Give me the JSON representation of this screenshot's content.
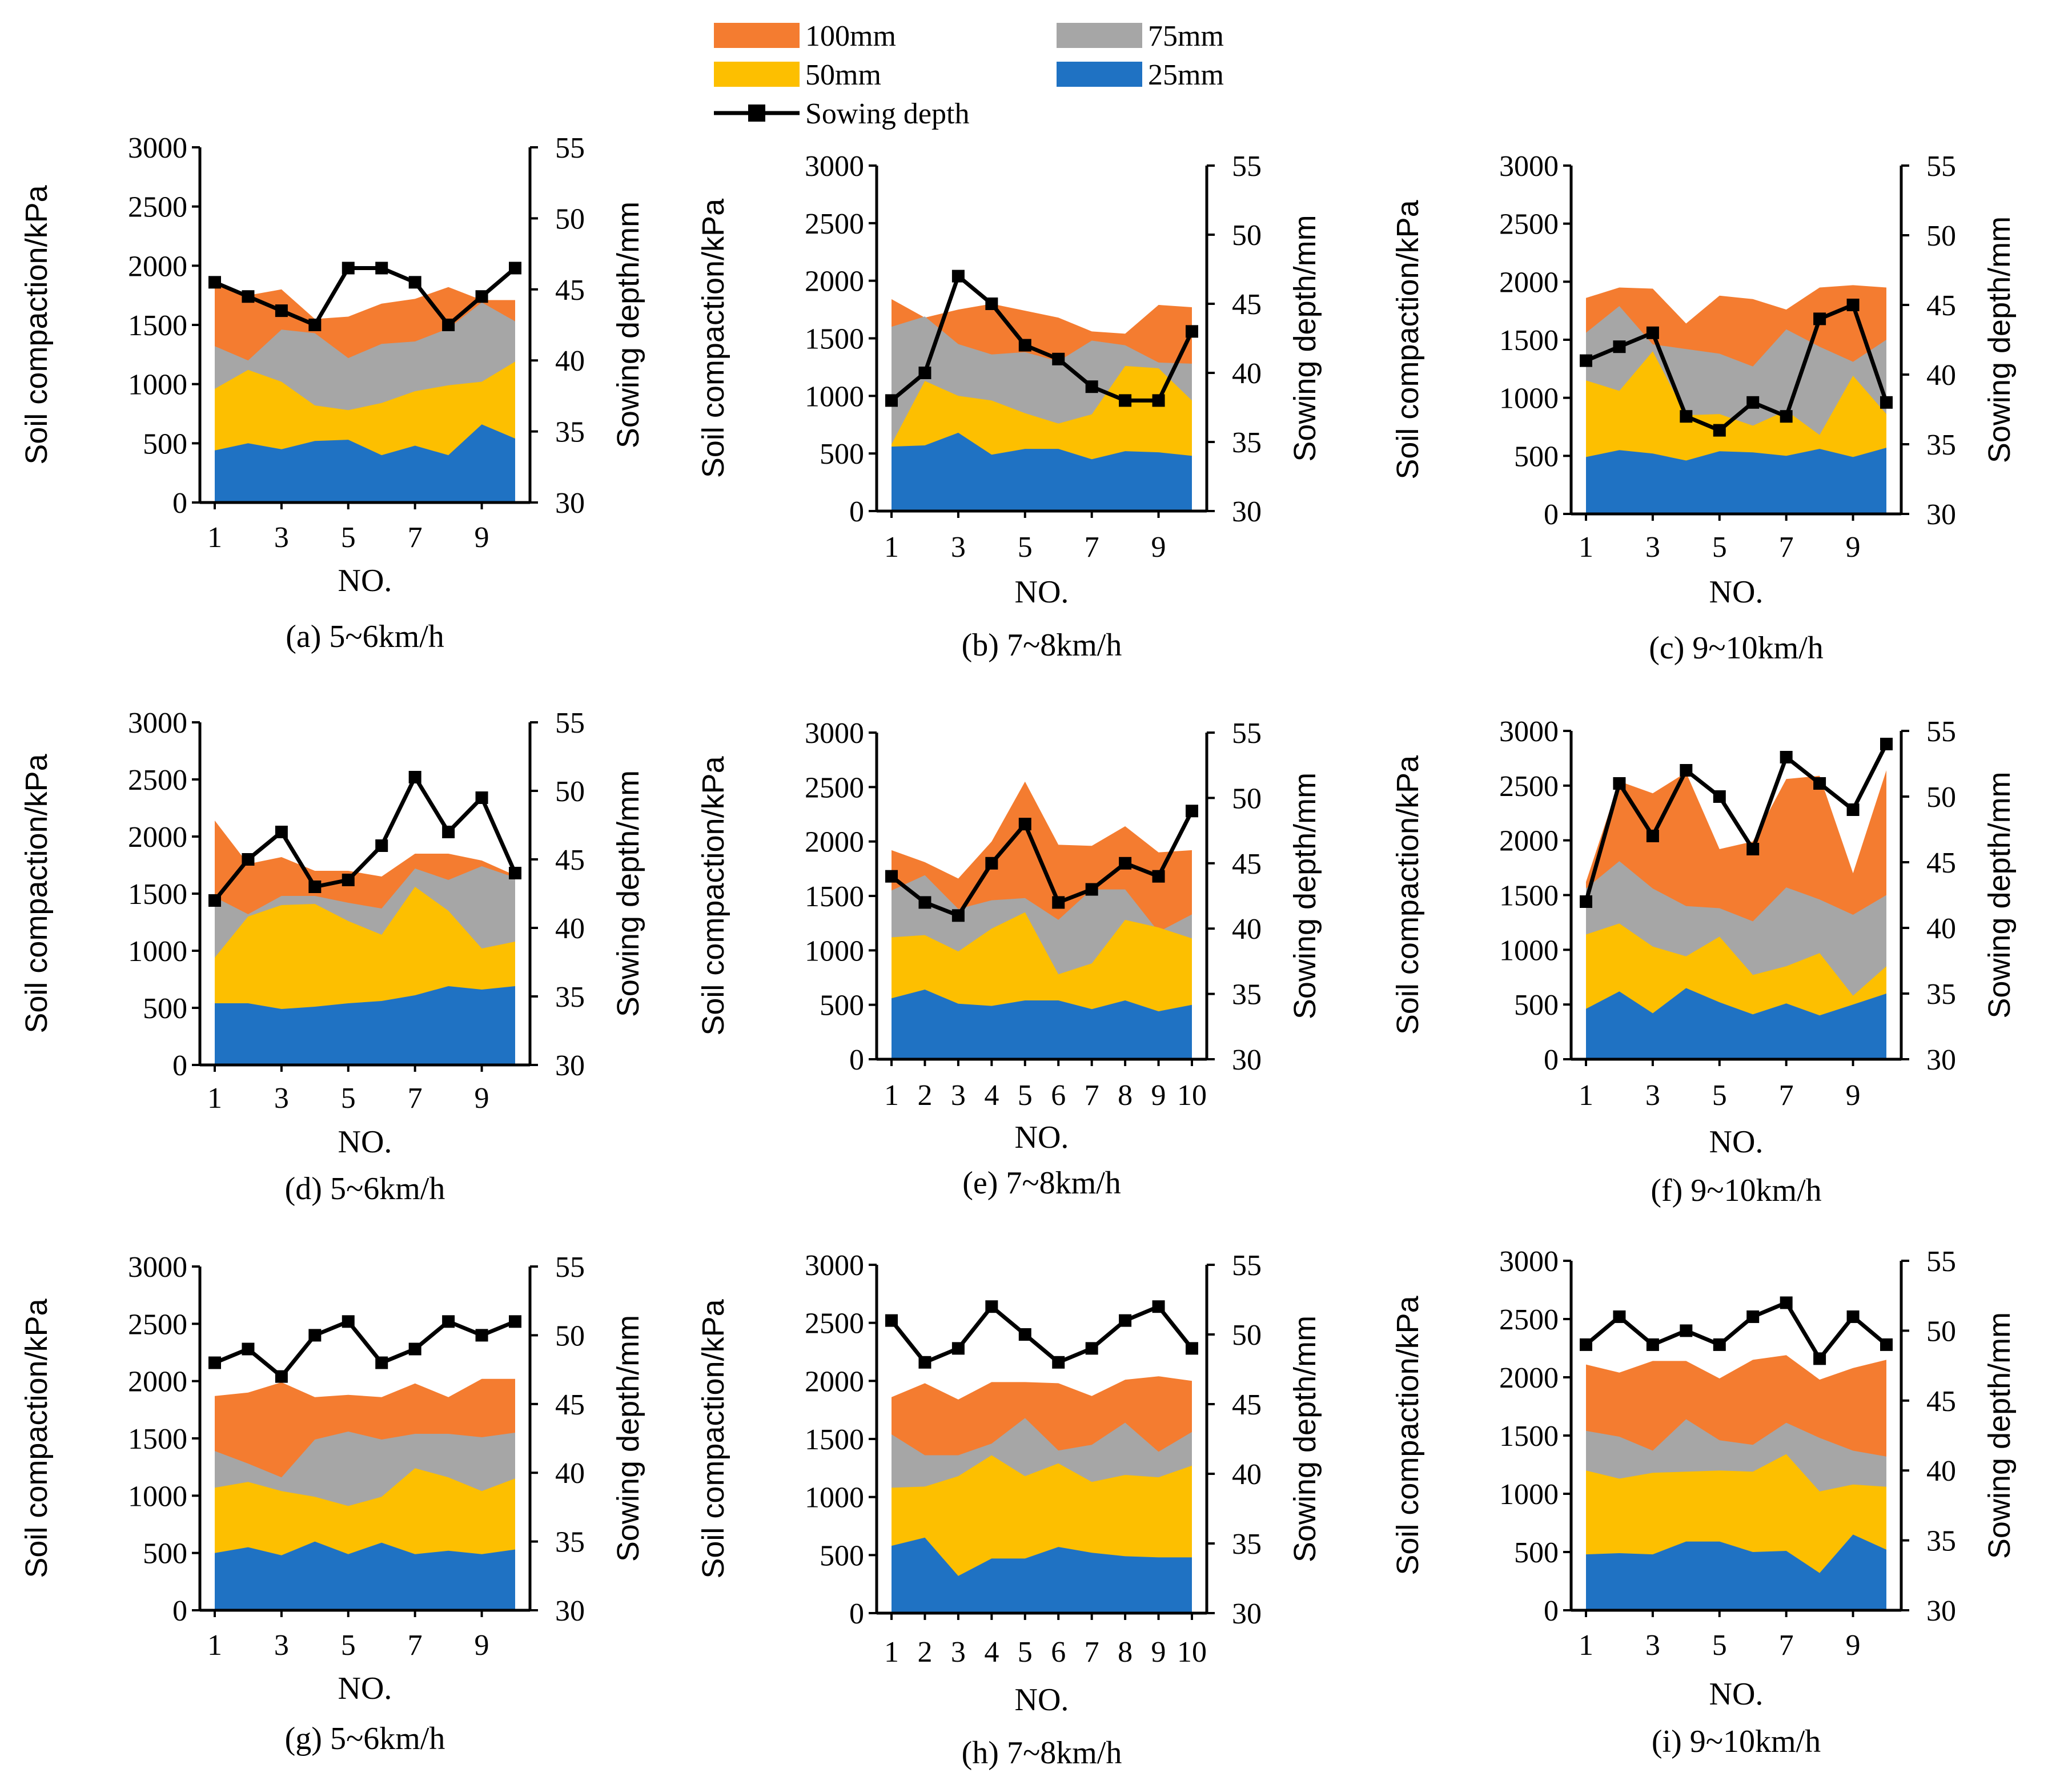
{
  "legend": {
    "items": [
      {
        "key": "s100",
        "label": "100mm",
        "color": "#F47C30",
        "kind": "area"
      },
      {
        "key": "s75",
        "label": "75mm",
        "color": "#A6A6A6",
        "kind": "area"
      },
      {
        "key": "s50",
        "label": "50mm",
        "color": "#FDBF00",
        "kind": "area"
      },
      {
        "key": "s25",
        "label": "25mm",
        "color": "#1F72C3",
        "kind": "area"
      },
      {
        "key": "depth",
        "label": "Sowing depth",
        "color": "#000000",
        "kind": "line"
      }
    ]
  },
  "chart_data": [
    {
      "id": "a",
      "type": "area",
      "title": "(a) 5~6km/h",
      "xlabel": "NO.",
      "ylabel": "Soil compaction/kPa",
      "y2label": "Sowing depth/mm",
      "x": [
        1,
        2,
        3,
        4,
        5,
        6,
        7,
        8,
        9,
        10
      ],
      "xticks": [
        "1",
        "3",
        "5",
        "7",
        "9"
      ],
      "ylim": [
        0,
        3000
      ],
      "yticks": [
        "0",
        "500",
        "1000",
        "1500",
        "2000",
        "2500",
        "3000"
      ],
      "y2lim": [
        30,
        55
      ],
      "y2ticks": [
        "30",
        "35",
        "40",
        "45",
        "50",
        "55"
      ],
      "series": [
        {
          "name": "25mm",
          "values": [
            440,
            500,
            450,
            520,
            530,
            400,
            480,
            400,
            660,
            540
          ]
        },
        {
          "name": "50mm",
          "values": [
            960,
            1120,
            1020,
            820,
            780,
            840,
            940,
            990,
            1020,
            1190
          ]
        },
        {
          "name": "75mm",
          "values": [
            1320,
            1200,
            1460,
            1430,
            1220,
            1340,
            1360,
            1470,
            1690,
            1530
          ]
        },
        {
          "name": "100mm",
          "values": [
            1840,
            1750,
            1800,
            1550,
            1570,
            1680,
            1720,
            1820,
            1710,
            1710
          ]
        }
      ],
      "sowing_depth": [
        45.5,
        44.5,
        43.5,
        42.5,
        46.5,
        46.5,
        45.5,
        42.5,
        44.5,
        46.5
      ]
    },
    {
      "id": "b",
      "type": "area",
      "title": "(b) 7~8km/h",
      "xlabel": "NO.",
      "ylabel": "Soil compaction/kPa",
      "y2label": "Sowing depth/mm",
      "x": [
        1,
        2,
        3,
        4,
        5,
        6,
        7,
        8,
        9,
        10
      ],
      "xticks": [
        "1",
        "3",
        "5",
        "7",
        "9"
      ],
      "ylim": [
        0,
        3000
      ],
      "yticks": [
        "0",
        "500",
        "1000",
        "1500",
        "2000",
        "2500",
        "3000"
      ],
      "y2lim": [
        30,
        55
      ],
      "y2ticks": [
        "30",
        "35",
        "40",
        "45",
        "50",
        "55"
      ],
      "series": [
        {
          "name": "25mm",
          "values": [
            560,
            570,
            680,
            490,
            540,
            540,
            450,
            520,
            510,
            480
          ]
        },
        {
          "name": "50mm",
          "values": [
            580,
            1130,
            1000,
            960,
            850,
            760,
            840,
            1260,
            1240,
            960
          ]
        },
        {
          "name": "75mm",
          "values": [
            1600,
            1690,
            1450,
            1360,
            1380,
            1300,
            1480,
            1440,
            1290,
            1280
          ]
        },
        {
          "name": "100mm",
          "values": [
            1840,
            1680,
            1750,
            1800,
            1740,
            1680,
            1560,
            1540,
            1790,
            1770
          ]
        }
      ],
      "sowing_depth": [
        38,
        40,
        47,
        45,
        42,
        41,
        39,
        38,
        38,
        43
      ]
    },
    {
      "id": "c",
      "type": "area",
      "title": "(c) 9~10km/h",
      "xlabel": "NO.",
      "ylabel": "Soil compaction/kPa",
      "y2label": "Sowing depth/mm",
      "x": [
        1,
        2,
        3,
        4,
        5,
        6,
        7,
        8,
        9,
        10
      ],
      "xticks": [
        "1",
        "3",
        "5",
        "7",
        "9"
      ],
      "ylim": [
        0,
        3000
      ],
      "yticks": [
        "0",
        "500",
        "1000",
        "1500",
        "2000",
        "2500",
        "3000"
      ],
      "y2lim": [
        30,
        55
      ],
      "y2ticks": [
        "30",
        "35",
        "40",
        "45",
        "50",
        "55"
      ],
      "series": [
        {
          "name": "25mm",
          "values": [
            490,
            550,
            520,
            460,
            540,
            530,
            500,
            560,
            490,
            570
          ]
        },
        {
          "name": "50mm",
          "values": [
            1150,
            1060,
            1400,
            850,
            860,
            760,
            890,
            680,
            1190,
            860
          ]
        },
        {
          "name": "75mm",
          "values": [
            1560,
            1790,
            1460,
            1420,
            1380,
            1270,
            1590,
            1440,
            1310,
            1500
          ]
        },
        {
          "name": "100mm",
          "values": [
            1860,
            1950,
            1940,
            1640,
            1880,
            1850,
            1760,
            1950,
            1970,
            1950
          ]
        }
      ],
      "sowing_depth": [
        41,
        42,
        43,
        37,
        36,
        38,
        37,
        44,
        45,
        38
      ]
    },
    {
      "id": "d",
      "type": "area",
      "title": "(d) 5~6km/h",
      "xlabel": "NO.",
      "ylabel": "Soil compaction/kPa",
      "y2label": "Sowing depth/mm",
      "x": [
        1,
        2,
        3,
        4,
        5,
        6,
        7,
        8,
        9,
        10
      ],
      "xticks": [
        "1",
        "3",
        "5",
        "7",
        "9"
      ],
      "ylim": [
        0,
        3000
      ],
      "yticks": [
        "0",
        "500",
        "1000",
        "1500",
        "2000",
        "2500",
        "3000"
      ],
      "y2lim": [
        30,
        55
      ],
      "y2ticks": [
        "30",
        "35",
        "40",
        "45",
        "50",
        "55"
      ],
      "series": [
        {
          "name": "25mm",
          "values": [
            540,
            540,
            490,
            510,
            540,
            560,
            610,
            690,
            660,
            690
          ]
        },
        {
          "name": "50mm",
          "values": [
            940,
            1300,
            1400,
            1410,
            1260,
            1140,
            1560,
            1350,
            1020,
            1080
          ]
        },
        {
          "name": "75mm",
          "values": [
            1470,
            1320,
            1480,
            1480,
            1420,
            1370,
            1720,
            1620,
            1740,
            1640
          ]
        },
        {
          "name": "100mm",
          "values": [
            2140,
            1760,
            1820,
            1700,
            1700,
            1650,
            1850,
            1850,
            1790,
            1660
          ]
        }
      ],
      "sowing_depth": [
        42,
        45,
        47,
        43,
        43.5,
        46,
        51,
        47,
        49.5,
        44
      ]
    },
    {
      "id": "e",
      "type": "area",
      "title": "(e) 7~8km/h",
      "xlabel": "NO.",
      "ylabel": "Soil compaction/kPa",
      "y2label": "Sowing depth/mm",
      "x": [
        1,
        2,
        3,
        4,
        5,
        6,
        7,
        8,
        9,
        10
      ],
      "xticks": [
        "1",
        "2",
        "3",
        "4",
        "5",
        "6",
        "7",
        "8",
        "9",
        "10"
      ],
      "ylim": [
        0,
        3000
      ],
      "yticks": [
        "0",
        "500",
        "1000",
        "1500",
        "2000",
        "2500",
        "3000"
      ],
      "y2lim": [
        30,
        55
      ],
      "y2ticks": [
        "30",
        "35",
        "40",
        "45",
        "50",
        "55"
      ],
      "series": [
        {
          "name": "25mm",
          "values": [
            560,
            640,
            510,
            490,
            540,
            540,
            460,
            540,
            440,
            500
          ]
        },
        {
          "name": "50mm",
          "values": [
            1120,
            1140,
            990,
            1200,
            1350,
            780,
            880,
            1280,
            1210,
            1110
          ]
        },
        {
          "name": "75mm",
          "values": [
            1550,
            1690,
            1380,
            1460,
            1480,
            1280,
            1560,
            1560,
            1170,
            1330
          ]
        },
        {
          "name": "100mm",
          "values": [
            1920,
            1810,
            1660,
            2000,
            2550,
            1970,
            1960,
            2140,
            1900,
            1920
          ]
        }
      ],
      "sowing_depth": [
        44,
        42,
        41,
        45,
        48,
        42,
        43,
        45,
        44,
        49
      ]
    },
    {
      "id": "f",
      "type": "area",
      "title": "(f) 9~10km/h",
      "xlabel": "NO.",
      "ylabel": "Soil compaction/kPa",
      "y2label": "Sowing depth/mm",
      "x": [
        1,
        2,
        3,
        4,
        5,
        6,
        7,
        8,
        9,
        10
      ],
      "xticks": [
        "1",
        "3",
        "5",
        "7",
        "9"
      ],
      "ylim": [
        0,
        3000
      ],
      "yticks": [
        "0",
        "500",
        "1000",
        "1500",
        "2000",
        "2500",
        "3000"
      ],
      "y2lim": [
        30,
        55
      ],
      "y2ticks": [
        "30",
        "35",
        "40",
        "45",
        "50",
        "55"
      ],
      "series": [
        {
          "name": "25mm",
          "values": [
            460,
            620,
            420,
            650,
            520,
            410,
            510,
            400,
            500,
            600
          ]
        },
        {
          "name": "50mm",
          "values": [
            1140,
            1240,
            1030,
            940,
            1120,
            770,
            850,
            970,
            580,
            850
          ]
        },
        {
          "name": "75mm",
          "values": [
            1560,
            1810,
            1560,
            1400,
            1380,
            1260,
            1570,
            1460,
            1320,
            1500
          ]
        },
        {
          "name": "100mm",
          "values": [
            1620,
            2540,
            2430,
            2620,
            1920,
            1990,
            2560,
            2590,
            1700,
            2640
          ]
        }
      ],
      "sowing_depth": [
        42,
        51,
        47,
        52,
        50,
        46,
        53,
        51,
        49,
        54
      ]
    },
    {
      "id": "g",
      "type": "area",
      "title": "(g) 5~6km/h",
      "xlabel": "NO.",
      "ylabel": "Soil compaction/kPa",
      "y2label": "Sowing depth/mm",
      "x": [
        1,
        2,
        3,
        4,
        5,
        6,
        7,
        8,
        9,
        10
      ],
      "xticks": [
        "1",
        "3",
        "5",
        "7",
        "9"
      ],
      "ylim": [
        0,
        3000
      ],
      "yticks": [
        "0",
        "500",
        "1000",
        "1500",
        "2000",
        "2500",
        "3000"
      ],
      "y2lim": [
        30,
        55
      ],
      "y2ticks": [
        "30",
        "35",
        "40",
        "45",
        "50",
        "55"
      ],
      "series": [
        {
          "name": "25mm",
          "values": [
            500,
            550,
            480,
            600,
            490,
            590,
            490,
            520,
            490,
            530
          ]
        },
        {
          "name": "50mm",
          "values": [
            1070,
            1120,
            1040,
            990,
            910,
            990,
            1240,
            1160,
            1040,
            1150
          ]
        },
        {
          "name": "75mm",
          "values": [
            1390,
            1280,
            1160,
            1490,
            1560,
            1490,
            1540,
            1540,
            1510,
            1550
          ]
        },
        {
          "name": "100mm",
          "values": [
            1870,
            1900,
            1990,
            1860,
            1880,
            1860,
            1980,
            1860,
            2020,
            2020
          ]
        }
      ],
      "sowing_depth": [
        48,
        49,
        47,
        50,
        51,
        48,
        49,
        51,
        50,
        51
      ]
    },
    {
      "id": "h",
      "type": "area",
      "title": "(h) 7~8km/h",
      "xlabel": "NO.",
      "ylabel": "Soil compaction/kPa",
      "y2label": "Sowing depth/mm",
      "x": [
        1,
        2,
        3,
        4,
        5,
        6,
        7,
        8,
        9,
        10
      ],
      "xticks": [
        "1",
        "2",
        "3",
        "4",
        "5",
        "6",
        "7",
        "8",
        "9",
        "10"
      ],
      "ylim": [
        0,
        3000
      ],
      "yticks": [
        "0",
        "500",
        "1000",
        "1500",
        "2000",
        "2500",
        "3000"
      ],
      "y2lim": [
        30,
        55
      ],
      "y2ticks": [
        "30",
        "35",
        "40",
        "45",
        "50",
        "55"
      ],
      "series": [
        {
          "name": "25mm",
          "values": [
            580,
            650,
            320,
            470,
            470,
            570,
            520,
            490,
            480,
            480
          ]
        },
        {
          "name": "50mm",
          "values": [
            1080,
            1090,
            1180,
            1360,
            1180,
            1290,
            1130,
            1190,
            1170,
            1270
          ]
        },
        {
          "name": "75mm",
          "values": [
            1540,
            1360,
            1360,
            1460,
            1680,
            1400,
            1450,
            1640,
            1390,
            1560
          ]
        },
        {
          "name": "100mm",
          "values": [
            1860,
            1980,
            1840,
            1990,
            1990,
            1980,
            1870,
            2010,
            2040,
            2000
          ]
        }
      ],
      "sowing_depth": [
        51,
        48,
        49,
        52,
        50,
        48,
        49,
        51,
        52,
        49
      ]
    },
    {
      "id": "i",
      "type": "area",
      "title": "(i) 9~10km/h",
      "xlabel": "NO.",
      "ylabel": "Soil compaction/kPa",
      "y2label": "Sowing depth/mm",
      "x": [
        1,
        2,
        3,
        4,
        5,
        6,
        7,
        8,
        9,
        10
      ],
      "xticks": [
        "1",
        "3",
        "5",
        "7",
        "9"
      ],
      "ylim": [
        0,
        3000
      ],
      "yticks": [
        "0",
        "500",
        "1000",
        "1500",
        "2000",
        "2500",
        "3000"
      ],
      "y2lim": [
        30,
        55
      ],
      "y2ticks": [
        "30",
        "35",
        "40",
        "45",
        "50",
        "55"
      ],
      "series": [
        {
          "name": "25mm",
          "values": [
            480,
            490,
            480,
            590,
            590,
            500,
            510,
            320,
            650,
            520
          ]
        },
        {
          "name": "50mm",
          "values": [
            1200,
            1130,
            1180,
            1190,
            1200,
            1190,
            1340,
            1020,
            1080,
            1060
          ]
        },
        {
          "name": "75mm",
          "values": [
            1540,
            1490,
            1370,
            1640,
            1460,
            1420,
            1610,
            1480,
            1370,
            1320
          ]
        },
        {
          "name": "100mm",
          "values": [
            2110,
            2040,
            2140,
            2140,
            1990,
            2150,
            2190,
            1980,
            2080,
            2150
          ]
        }
      ],
      "sowing_depth": [
        49,
        51,
        49,
        50,
        49,
        51,
        52,
        48,
        51,
        49
      ]
    }
  ]
}
